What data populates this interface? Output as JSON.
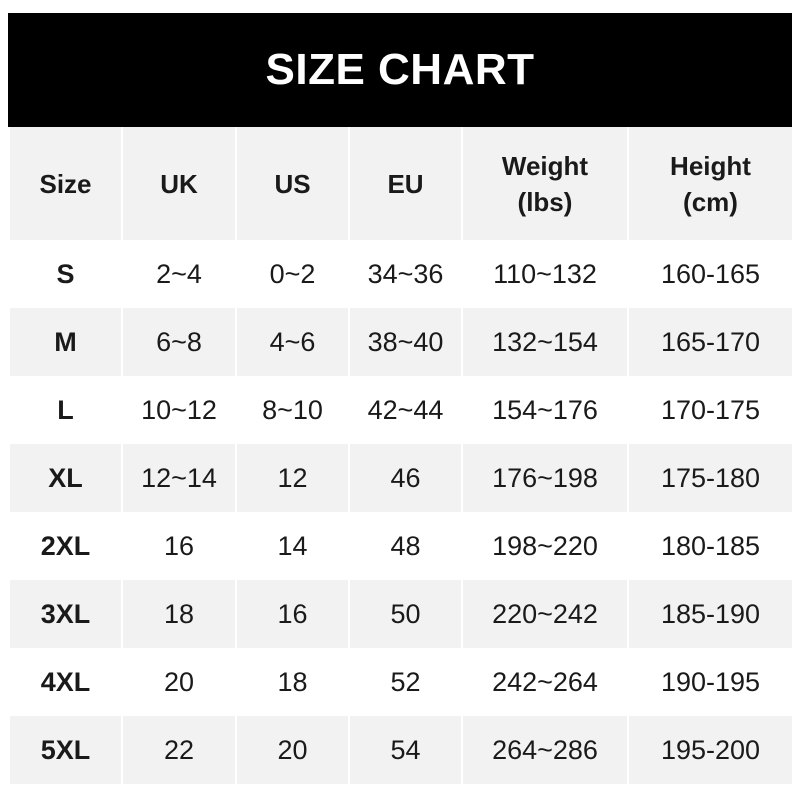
{
  "title": "SIZE CHART",
  "headers": [
    "Size",
    "UK",
    "US",
    "EU",
    "Weight\n(lbs)",
    "Height\n(cm)"
  ],
  "rows": [
    [
      "S",
      "2~4",
      "0~2",
      "34~36",
      "110~132",
      "160-165"
    ],
    [
      "M",
      "6~8",
      "4~6",
      "38~40",
      "132~154",
      "165-170"
    ],
    [
      "L",
      "10~12",
      "8~10",
      "42~44",
      "154~176",
      "170-175"
    ],
    [
      "XL",
      "12~14",
      "12",
      "46",
      "176~198",
      "175-180"
    ],
    [
      "2XL",
      "16",
      "14",
      "48",
      "198~220",
      "180-185"
    ],
    [
      "3XL",
      "18",
      "16",
      "50",
      "220~242",
      "185-190"
    ],
    [
      "4XL",
      "20",
      "18",
      "52",
      "242~264",
      "190-195"
    ],
    [
      "5XL",
      "22",
      "20",
      "54",
      "264~286",
      "195-200"
    ]
  ],
  "colors": {
    "title_bg": "#000000",
    "stripe": "#f2f2f2"
  }
}
